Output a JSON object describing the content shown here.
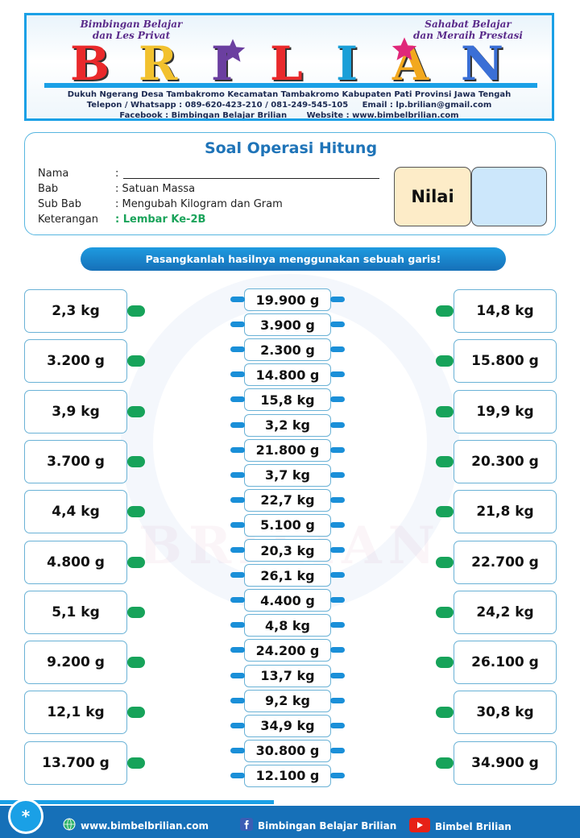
{
  "header": {
    "tagline_left_1": "Bimbingan Belajar",
    "tagline_left_2": "dan Les Privat",
    "tagline_right_1": "Sahabat Belajar",
    "tagline_right_2": "dan Meraih Prestasi",
    "brand_letters": [
      "B",
      "R",
      "I",
      "L",
      "I",
      "A",
      "N"
    ],
    "brand_colors": [
      "#e9292b",
      "#f2c12e",
      "#6b3fa0",
      "#e9292b",
      "#1a9fd8",
      "#f2a81e",
      "#3a6fd6"
    ],
    "address": "Dukuh Ngerang Desa Tambakromo Kecamatan Tambakromo Kabupaten Pati Provinsi Jawa Tengah",
    "phone": "Telepon / Whatsapp : 089-620-423-210 / 081-249-545-105",
    "email": "Email : lp.brilian@gmail.com",
    "facebook": "Facebook : Bimbingan Belajar Brilian",
    "website": "Website : www.bimbelbrilian.com"
  },
  "card": {
    "title": "Soal Operasi Hitung",
    "fields": [
      {
        "label": "Nama",
        "value": ":"
      },
      {
        "label": "Bab",
        "value": ": Satuan Massa"
      },
      {
        "label": "Sub Bab",
        "value": ": Mengubah Kilogram dan Gram"
      },
      {
        "label": "Keterangan",
        "value": ": Lembar Ke-2B"
      }
    ],
    "keterangan_color": "#1aa35a",
    "nilai_label": "Nilai"
  },
  "instruction": "Pasangkanlah hasilnya menggunakan sebuah garis!",
  "left_items": [
    "2,3 kg",
    "3.200 g",
    "3,9 kg",
    "3.700 g",
    "4,4 kg",
    "4.800 g",
    "5,1 kg",
    "9.200 g",
    "12,1 kg",
    "13.700 g"
  ],
  "middle_items": [
    "19.900 g",
    "3.900 g",
    "2.300 g",
    "14.800 g",
    "15,8 kg",
    "3,2 kg",
    "21.800 g",
    "3,7 kg",
    "22,7 kg",
    "5.100 g",
    "20,3 kg",
    "26,1 kg",
    "4.400 g",
    "4,8 kg",
    "24.200 g",
    "13,7 kg",
    "9,2 kg",
    "34,9 kg",
    "30.800 g",
    "12.100 g"
  ],
  "right_items": [
    "14,8 kg",
    "15.800 g",
    "19,9 kg",
    "20.300 g",
    "21,8 kg",
    "22.700 g",
    "24,2 kg",
    "26.100 g",
    "30,8 kg",
    "34.900 g"
  ],
  "footer": {
    "circle": "*",
    "website": "www.bimbelbrilian.com",
    "facebook": "Bimbingan Belajar Brilian",
    "youtube": "Bimbel Brilian"
  }
}
